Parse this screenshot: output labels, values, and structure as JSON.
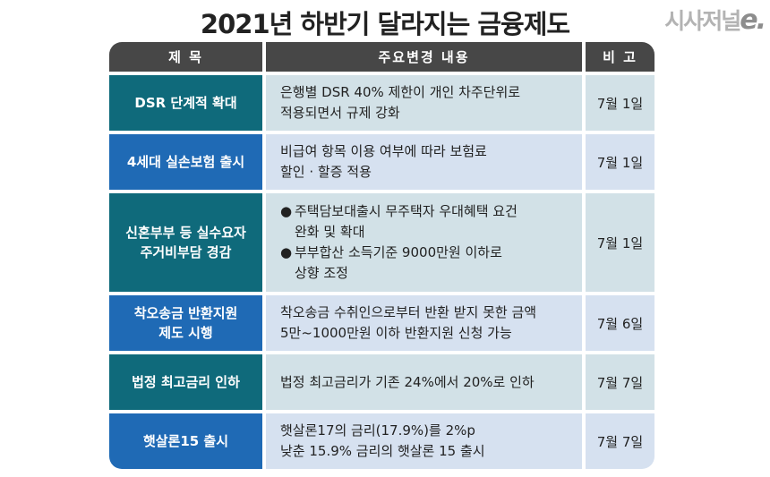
{
  "title": "2021년 하반기 달라지는 금융제도",
  "logo": {
    "text": "시사저널",
    "e": "e."
  },
  "headers": {
    "col1": "제 목",
    "col2": "주요변경 내용",
    "col3": "비 고"
  },
  "rows": [
    {
      "item": [
        "DSR 단계적 확대"
      ],
      "desc": [
        "은행별 DSR 40% 제한이 개인 차주단위로",
        "적용되면서 규제 강화"
      ],
      "date": "7월 1일"
    },
    {
      "item": [
        "4세대 실손보험 출시"
      ],
      "desc": [
        "비급여 항목 이용 여부에 따라 보험료",
        "할인 · 할증 적용"
      ],
      "date": "7월 1일"
    },
    {
      "item": [
        "신혼부부 등 실수요자",
        "주거비부담 경감"
      ],
      "bullets": [
        {
          "mark": "●",
          "lines": [
            "주택담보대출시 무주택자 우대혜택 요건",
            "완화 및 확대"
          ]
        },
        {
          "mark": "●",
          "lines": [
            "부부합산 소득기준 9000만원 이하로",
            "상향 조정"
          ]
        }
      ],
      "date": "7월 1일"
    },
    {
      "item": [
        "착오송금 반환지원",
        "제도 시행"
      ],
      "desc": [
        "착오송금 수취인으로부터 반환 받지 못한 금액",
        "5만~1000만원 이하 반환지원 신청 가능"
      ],
      "date": "7월 6일"
    },
    {
      "item": [
        "법정 최고금리 인하"
      ],
      "desc": [
        "법정 최고금리가 기존 24%에서 20%로 인하"
      ],
      "date": "7월 7일"
    },
    {
      "item": [
        "햇살론15 출시"
      ],
      "desc": [
        "햇살론17의 금리(17.9%)를 2%p",
        "낮춘 15.9% 금리의 햇살론 15 출시"
      ],
      "date": "7월 7일"
    }
  ]
}
